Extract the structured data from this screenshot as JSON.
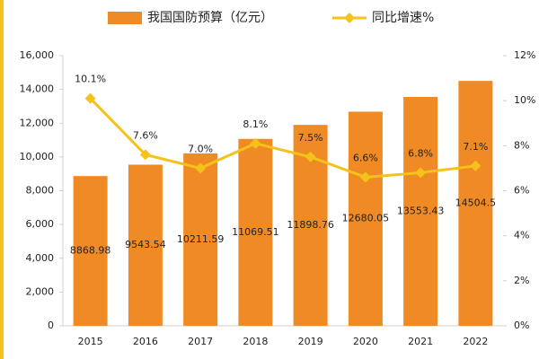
{
  "chart_data": {
    "type": "bar",
    "categories": [
      "2015",
      "2016",
      "2017",
      "2018",
      "2019",
      "2020",
      "2021",
      "2022"
    ],
    "series": [
      {
        "name": "我国国防预算（亿元）",
        "type": "bar",
        "color": "#f08a24",
        "values": [
          8868.98,
          9543.54,
          10211.59,
          11069.51,
          11898.76,
          12680.05,
          13553.43,
          14504.5
        ]
      },
      {
        "name": "同比增速%",
        "type": "line",
        "axis": "y2",
        "color": "#f5c21b",
        "values": [
          10.1,
          7.6,
          7.0,
          8.1,
          7.5,
          6.6,
          6.8,
          7.1
        ],
        "value_labels": [
          "10.1%",
          "7.6%",
          "7.0%",
          "8.1%",
          "7.5%",
          "6.6%",
          "6.8%",
          "7.1%"
        ]
      }
    ],
    "ylim": [
      0,
      16000
    ],
    "yticks": [
      0,
      {
        "value": 2000,
        "label": "2,000"
      },
      {
        "value": 4000,
        "label": "4,000"
      },
      {
        "value": 6000,
        "label": "6,000"
      },
      {
        "value": 8000,
        "label": "8,000"
      },
      {
        "value": 10000,
        "label": "10,000"
      },
      {
        "value": 12000,
        "label": "12,000"
      },
      {
        "value": 14000,
        "label": "14,000"
      },
      {
        "value": 16000,
        "label": "16,000"
      }
    ],
    "y2lim": [
      0,
      12
    ],
    "y2ticks": [
      {
        "value": 0,
        "label": "0%"
      },
      {
        "value": 2,
        "label": "2%"
      },
      {
        "value": 4,
        "label": "4%"
      },
      {
        "value": 6,
        "label": "6%"
      },
      {
        "value": 8,
        "label": "8%"
      },
      {
        "value": 10,
        "label": "10%"
      },
      {
        "value": 12,
        "label": "12%"
      }
    ],
    "legend": "top"
  }
}
